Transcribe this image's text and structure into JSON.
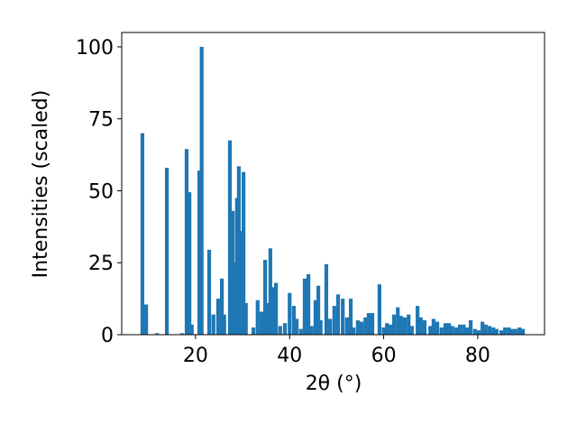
{
  "chart_data": {
    "type": "bar",
    "xlabel": "2θ (°)",
    "ylabel": "Intensities (scaled)",
    "color": "#1f77b4",
    "x": [
      8.7,
      9.5,
      11.8,
      13.9,
      17.1,
      18.1,
      18.7,
      19.2,
      20.8,
      21.3,
      22.9,
      23.8,
      24.8,
      25.6,
      26.1,
      27.3,
      27.9,
      28.4,
      28.8,
      29.2,
      29.6,
      30.2,
      30.7,
      32.3,
      33.2,
      34.0,
      34.8,
      35.3,
      35.9,
      36.5,
      37.1,
      38.0,
      39.0,
      40.0,
      40.9,
      41.5,
      42.4,
      43.2,
      44.0,
      44.7,
      45.5,
      46.1,
      46.6,
      47.8,
      48.6,
      49.5,
      50.3,
      51.3,
      52.2,
      53.0,
      53.6,
      54.5,
      55.3,
      56.1,
      56.8,
      57.6,
      59.1,
      60.0,
      60.7,
      61.4,
      62.2,
      63.0,
      63.7,
      64.5,
      65.3,
      66.0,
      67.2,
      67.9,
      68.7,
      69.9,
      70.6,
      71.4,
      72.3,
      73.1,
      73.9,
      74.6,
      75.4,
      76.2,
      77.0,
      77.7,
      78.5,
      79.4,
      80.2,
      81.0,
      81.7,
      82.5,
      83.3,
      84.0,
      85.0,
      85.8,
      86.6,
      87.3,
      88.1,
      88.9,
      89.6
    ],
    "values": [
      70,
      10.5,
      0.5,
      58,
      0.5,
      64.5,
      49.5,
      3.5,
      57,
      100,
      29.5,
      7,
      12.5,
      19.5,
      7,
      67.5,
      43,
      25,
      47.5,
      58.5,
      36,
      56.5,
      11,
      2.5,
      12,
      8,
      26,
      11,
      30,
      16.5,
      18,
      3,
      4,
      14.5,
      10,
      5.5,
      2,
      19.5,
      21,
      3,
      12,
      17,
      5,
      24.5,
      5.5,
      10,
      14,
      12.5,
      6,
      12.5,
      2.5,
      5,
      4.5,
      6,
      7.5,
      7.5,
      17.5,
      2.5,
      4,
      3.5,
      7,
      9.5,
      6.5,
      6,
      7,
      3,
      10,
      6,
      5,
      3,
      5.5,
      4.5,
      2.5,
      4,
      4,
      3,
      2.5,
      3.5,
      3.5,
      2.5,
      5,
      2,
      1.5,
      4.5,
      3.5,
      3,
      2.5,
      2,
      1.5,
      2.5,
      2.5,
      2,
      2,
      2.5,
      2
    ],
    "xlim": [
      4.3,
      94.2
    ],
    "ylim": [
      0,
      105
    ],
    "xticks": [
      20,
      40,
      60,
      80
    ],
    "yticks": [
      0,
      25,
      50,
      75,
      100
    ],
    "grid": false
  }
}
